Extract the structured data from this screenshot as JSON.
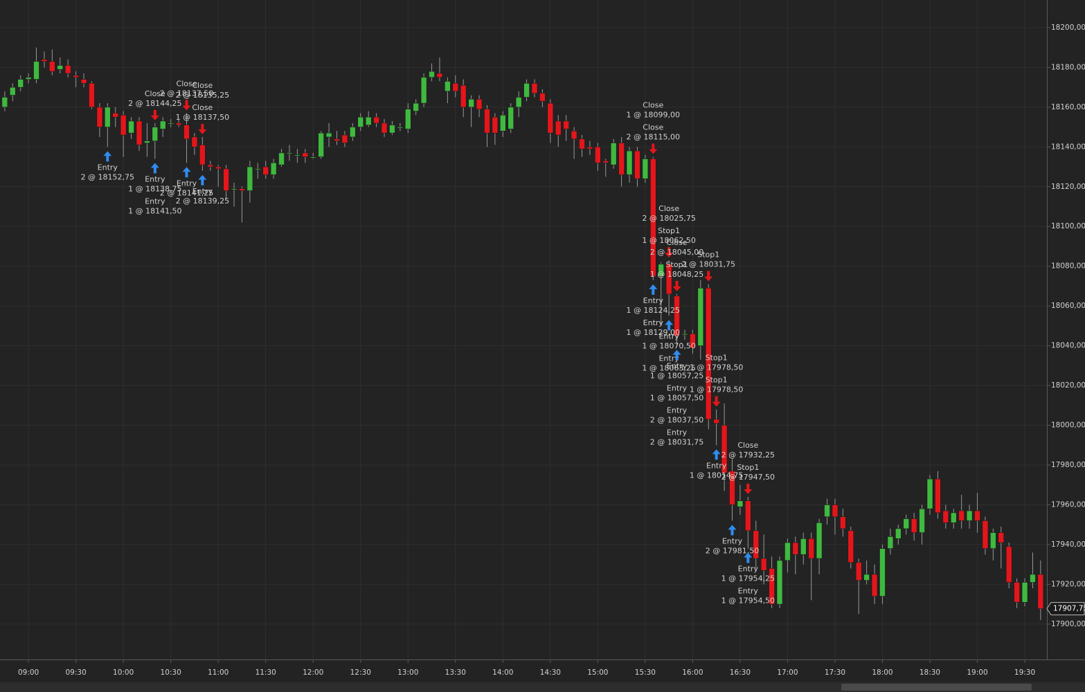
{
  "chart_data": {
    "type": "candlestick",
    "x": [
      "08:45",
      "08:50",
      "08:55",
      "09:00",
      "09:05",
      "09:10",
      "09:15",
      "09:20",
      "09:25",
      "09:30",
      "09:35",
      "09:40",
      "09:45",
      "09:50",
      "09:55",
      "10:00",
      "10:05",
      "10:10",
      "10:15",
      "10:20",
      "10:25",
      "10:30",
      "10:35",
      "10:40",
      "10:45",
      "10:50",
      "10:55",
      "11:00",
      "11:05",
      "11:10",
      "11:15",
      "11:20",
      "11:25",
      "11:30",
      "11:35",
      "11:40",
      "11:45",
      "11:50",
      "11:55",
      "12:00",
      "12:05",
      "12:10",
      "12:15",
      "12:20",
      "12:25",
      "12:30",
      "12:35",
      "12:40",
      "12:45",
      "12:50",
      "12:55",
      "13:00",
      "13:05",
      "13:10",
      "13:15",
      "13:20",
      "13:25",
      "13:30",
      "13:35",
      "13:40",
      "13:45",
      "13:50",
      "13:55",
      "14:00",
      "14:05",
      "14:10",
      "14:15",
      "14:20",
      "14:25",
      "14:30",
      "14:35",
      "14:40",
      "14:45",
      "14:50",
      "14:55",
      "15:00",
      "15:05",
      "15:10",
      "15:15",
      "15:20",
      "15:25",
      "15:30",
      "15:35",
      "15:40",
      "15:45",
      "15:50",
      "15:55",
      "16:00",
      "16:05",
      "16:10",
      "16:15",
      "16:20",
      "16:25",
      "16:30",
      "16:35",
      "16:40",
      "16:45",
      "16:50",
      "16:55",
      "17:00",
      "17:05",
      "17:10",
      "17:15",
      "17:20",
      "17:25",
      "17:30",
      "17:35",
      "17:40",
      "17:45",
      "17:50",
      "17:55",
      "18:00",
      "18:05",
      "18:10",
      "18:15",
      "18:20",
      "18:25",
      "18:30",
      "18:35",
      "18:40",
      "18:45",
      "18:50",
      "18:55",
      "19:00",
      "19:05",
      "19:10",
      "19:15",
      "19:20",
      "19:25",
      "19:30",
      "19:35",
      "19:40"
    ],
    "open": [
      18160,
      18166,
      18170,
      18174,
      18174,
      18184,
      18183,
      18179,
      18181,
      18176,
      18174,
      18172,
      18160,
      18150,
      18157,
      18156,
      18147,
      18153,
      18142,
      18143,
      18149,
      18152,
      18152,
      18151,
      18145,
      18141,
      18131,
      18130,
      18129,
      18119,
      18119,
      18118,
      18129,
      18130,
      18126,
      18131,
      18137,
      18136,
      18137,
      18135,
      18135,
      18145,
      18144,
      18146,
      18145,
      18150,
      18151,
      18155,
      18152,
      18147,
      18150,
      18149,
      18158,
      18162,
      18175,
      18177,
      18168,
      18172,
      18171,
      18160,
      18164,
      18159,
      18155,
      18148,
      18149,
      18160,
      18165,
      18172,
      18167,
      18162,
      18153,
      18153,
      18148,
      18144,
      18140,
      18140,
      18133,
      18131,
      18142,
      18126,
      18138,
      18124,
      18134,
      18075,
      18081,
      18065,
      18046,
      18046,
      18040,
      18069,
      18003,
      18000,
      17977,
      17959,
      17962,
      17947,
      17933,
      17928,
      17910,
      17932,
      17941,
      17935,
      17943,
      17933,
      17954,
      17960,
      17954,
      17947,
      17931,
      17922,
      17925,
      17914,
      17938,
      17943,
      17948,
      17953,
      17946,
      17958,
      17973,
      17957,
      17951,
      17957,
      17952,
      17957,
      17952,
      17938,
      17946,
      17939,
      17921,
      17911,
      17921,
      17925
    ],
    "high": [
      18168,
      18172,
      18176,
      18177,
      18190,
      18188,
      18189,
      18185,
      18184,
      18178,
      18177,
      18173,
      18162,
      18162,
      18160,
      18158,
      18155,
      18155,
      18152,
      18152,
      18155,
      18154,
      18154,
      18157,
      18147,
      18145,
      18133,
      18131,
      18131,
      18122,
      18120,
      18133,
      18132,
      18133,
      18134,
      18139,
      18141,
      18139,
      18139,
      18137,
      18148,
      18152,
      18148,
      18148,
      18152,
      18157,
      18158,
      18157,
      18154,
      18153,
      18152,
      18162,
      18164,
      18177,
      18182,
      18185,
      18175,
      18176,
      18174,
      18166,
      18166,
      18161,
      18157,
      18158,
      18162,
      18168,
      18174,
      18174,
      18169,
      18164,
      18156,
      18156,
      18150,
      18146,
      18143,
      18142,
      18134,
      18144,
      18145,
      18140,
      18140,
      18136,
      18135,
      18082,
      18083,
      18066,
      18048,
      18048,
      18073,
      18071,
      18008,
      18011,
      17983,
      17970,
      17964,
      17952,
      17945,
      17934,
      17934,
      17943,
      17944,
      17946,
      17946,
      17953,
      17963,
      17963,
      17958,
      17949,
      17933,
      17932,
      17930,
      17940,
      17948,
      17950,
      17955,
      17956,
      17960,
      17975,
      17977,
      17960,
      17958,
      17965,
      17960,
      17966,
      17954,
      17948,
      17949,
      17941,
      17923,
      17923,
      17936,
      17932
    ],
    "low": [
      18158,
      18163,
      18168,
      18172,
      18172,
      18180,
      18176,
      18177,
      18175,
      18170,
      18170,
      18159,
      18145,
      18140,
      18150,
      18135,
      18144,
      18138,
      18135,
      18134,
      18145,
      18150,
      18150,
      18132,
      18136,
      18128,
      18128,
      18120,
      18114,
      18110,
      18102,
      18112,
      18124,
      18124,
      18124,
      18130,
      18133,
      18132,
      18132,
      18134,
      18134,
      18140,
      18141,
      18140,
      18143,
      18148,
      18150,
      18150,
      18145,
      18146,
      18148,
      18147,
      18156,
      18160,
      18173,
      18173,
      18162,
      18165,
      18155,
      18150,
      18155,
      18140,
      18141,
      18145,
      18147,
      18155,
      18163,
      18165,
      18160,
      18142,
      18140,
      18143,
      18134,
      18135,
      18136,
      18128,
      18125,
      18129,
      18120,
      18122,
      18120,
      18122,
      18073,
      18050,
      18055,
      18040,
      18043,
      18036,
      18033,
      17998,
      17990,
      17967,
      17952,
      17955,
      17938,
      17928,
      17920,
      17908,
      17908,
      17926,
      17925,
      17930,
      17912,
      17925,
      17950,
      17945,
      17944,
      17928,
      17905,
      17920,
      17910,
      17910,
      17935,
      17940,
      17945,
      17942,
      17940,
      17955,
      17953,
      17948,
      17948,
      17948,
      17948,
      17946,
      17935,
      17932,
      17928,
      17918,
      17908,
      17909,
      17918,
      17902
    ],
    "close": [
      18165,
      18170,
      18174,
      18175,
      18183,
      18183,
      18178,
      18181,
      18177,
      18175,
      18172,
      18160,
      18150,
      18160,
      18155,
      18146,
      18153,
      18141,
      18143,
      18150,
      18153,
      18152,
      18151,
      18144,
      18140,
      18131,
      18130,
      18129,
      18118,
      18119,
      18118,
      18130,
      18129,
      18126,
      18132,
      18137,
      18137,
      18136,
      18135,
      18135,
      18147,
      18147,
      18143,
      18142,
      18150,
      18155,
      18155,
      18152,
      18147,
      18151,
      18150,
      18159,
      18162,
      18175,
      18178,
      18175,
      18173,
      18168,
      18160,
      18164,
      18159,
      18147,
      18147,
      18156,
      18160,
      18165,
      18172,
      18167,
      18163,
      18147,
      18146,
      18149,
      18144,
      18139,
      18139,
      18132,
      18132,
      18142,
      18126,
      18138,
      18124,
      18134,
      18075,
      18081,
      18066,
      18045,
      18046,
      18039,
      18069,
      18003,
      18001,
      17976,
      17960,
      17962,
      17947,
      17933,
      17927,
      17910,
      17932,
      17941,
      17935,
      17943,
      17933,
      17951,
      17960,
      17954,
      17948,
      17931,
      17922,
      17925,
      17914,
      17938,
      17944,
      17948,
      17953,
      17946,
      17958,
      17973,
      17956,
      17951,
      17956,
      17952,
      17957,
      17952,
      17938,
      17946,
      17941,
      17921,
      17911,
      17921,
      17925,
      17907.75
    ],
    "up_color": "#3fb93f",
    "down_color": "#e3161b",
    "xlim": [
      "08:42",
      "19:44"
    ],
    "xticks": [
      "09:00",
      "09:30",
      "10:00",
      "10:30",
      "11:00",
      "11:30",
      "12:00",
      "12:30",
      "13:00",
      "13:30",
      "14:00",
      "14:30",
      "15:00",
      "15:30",
      "16:00",
      "16:30",
      "17:00",
      "17:30",
      "18:00",
      "18:30",
      "19:00",
      "19:30"
    ],
    "ylim": [
      17882.2,
      18213.9
    ],
    "yticks": [
      {
        "value": 17900,
        "label": "17900,00"
      },
      {
        "value": 17920,
        "label": "17920,00"
      },
      {
        "value": 17940,
        "label": "17940,00"
      },
      {
        "value": 17960,
        "label": "17960,00"
      },
      {
        "value": 17980,
        "label": "17980,00"
      },
      {
        "value": 18000,
        "label": "18000,00"
      },
      {
        "value": 18020,
        "label": "18020,00"
      },
      {
        "value": 18040,
        "label": "18040,00"
      },
      {
        "value": 18060,
        "label": "18060,00"
      },
      {
        "value": 18080,
        "label": "18080,00"
      },
      {
        "value": 18100,
        "label": "18100,00"
      },
      {
        "value": 18120,
        "label": "18120,00"
      },
      {
        "value": 18140,
        "label": "18140,00"
      },
      {
        "value": 18160,
        "label": "18160,00"
      },
      {
        "value": 18180,
        "label": "18180,00"
      },
      {
        "value": 18200,
        "label": "18200,00"
      }
    ],
    "grid": true,
    "last_price": {
      "value": 17907.75,
      "label": "17907,75"
    },
    "annotations": [
      {
        "marker": "up",
        "text": "Entry",
        "detail": "2 @ 18152,75",
        "time": "09:50"
      },
      {
        "marker": "up",
        "text": "Entry",
        "detail": "1 @ 18138,75",
        "time": "10:20"
      },
      {
        "marker": "up",
        "text": "Entry",
        "detail": "1 @ 18141,50",
        "time": "10:20"
      },
      {
        "marker": "down",
        "text": "Close",
        "detail": "2 @ 18144,25",
        "time": "10:20"
      },
      {
        "marker": "up",
        "text": "Entry",
        "detail": "2 @ 18141,25",
        "time": "10:40"
      },
      {
        "marker": "down",
        "text": "Close",
        "detail": "2 @ 18137,50",
        "time": "10:40"
      },
      {
        "marker": "up",
        "text": "Entry",
        "detail": "2 @ 18139,25",
        "time": "10:50"
      },
      {
        "marker": "down",
        "text": "Close",
        "detail": "1 @ 18137,50",
        "time": "10:50"
      },
      {
        "marker": "down",
        "text": "Close",
        "detail": "2 @ 18135,25",
        "time": "10:50"
      },
      {
        "marker": "down",
        "text": "Close",
        "detail": "2 @ 18115,00",
        "time": "15:35"
      },
      {
        "marker": "down",
        "text": "Close",
        "detail": "1 @ 18099,00",
        "time": "15:35"
      },
      {
        "marker": "up",
        "text": "Entry",
        "detail": "1 @ 18124,25",
        "time": "15:35"
      },
      {
        "marker": "up",
        "text": "Entry",
        "detail": "1 @ 18129,00",
        "time": "15:35"
      },
      {
        "marker": "down",
        "text": "Stop1",
        "detail": "1 @ 18062,50",
        "time": "15:45"
      },
      {
        "marker": "down",
        "text": "Close",
        "detail": "2 @ 18025,75",
        "time": "15:45"
      },
      {
        "marker": "up",
        "text": "Entry",
        "detail": "1 @ 18070,50",
        "time": "15:45"
      },
      {
        "marker": "up",
        "text": "Entry",
        "detail": "1 @ 18063,25",
        "time": "15:45"
      },
      {
        "marker": "down",
        "text": "Stop1",
        "detail": "1 @ 18048,25",
        "time": "15:50"
      },
      {
        "marker": "down",
        "text": "Close",
        "detail": "2 @ 18045,00",
        "time": "15:50"
      },
      {
        "marker": "up",
        "text": "Entry",
        "detail": "1 @ 18057,25",
        "time": "15:50"
      },
      {
        "marker": "up",
        "text": "Entry",
        "detail": "1 @ 18057,50",
        "time": "15:50"
      },
      {
        "marker": "up",
        "text": "Entry",
        "detail": "2 @ 18037,50",
        "time": "15:50"
      },
      {
        "marker": "up",
        "text": "Entry",
        "detail": "2 @ 18031,75",
        "time": "15:50"
      },
      {
        "marker": "down",
        "text": "Stop1",
        "detail": "2 @ 18031,75",
        "time": "16:10"
      },
      {
        "marker": "down",
        "text": "Stop1",
        "detail": "1 @ 17978,50",
        "time": "16:15"
      },
      {
        "marker": "down",
        "text": "Stop1",
        "detail": "1 @ 17978,50",
        "time": "16:15"
      },
      {
        "marker": "up",
        "text": "Entry",
        "detail": "1 @ 18014,75",
        "time": "16:15"
      },
      {
        "marker": "up",
        "text": "Entry",
        "detail": "2 @ 17981,50",
        "time": "16:25"
      },
      {
        "marker": "down",
        "text": "Stop1",
        "detail": "2 @ 17947,50",
        "time": "16:35"
      },
      {
        "marker": "down",
        "text": "Close",
        "detail": "2 @ 17932,25",
        "time": "16:35"
      },
      {
        "marker": "up",
        "text": "Entry",
        "detail": "1 @ 17954,25",
        "time": "16:35"
      },
      {
        "marker": "up",
        "text": "Entry",
        "detail": "1 @ 17954,50",
        "time": "16:35"
      }
    ]
  }
}
